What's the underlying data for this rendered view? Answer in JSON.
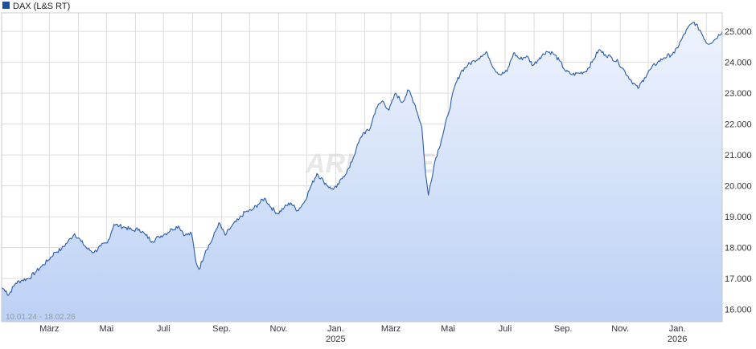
{
  "legend": {
    "label": "DAX (L&S RT)"
  },
  "date_range": "10.01.24 - 18.02.26",
  "watermark": "ARIVA.DE",
  "colors": {
    "line": "#2a5caa",
    "fill_top": "#eef3fd",
    "fill_bottom": "#bcd1f5",
    "grid": "#dcdcdc",
    "legend_box": "#1f4e9c",
    "frame": "#c8c8c8"
  },
  "chart_data": {
    "type": "area",
    "title": "",
    "xlabel": "",
    "ylabel": "",
    "ylim": [
      15600,
      25600
    ],
    "xlim": [
      "2024-01-10",
      "2026-02-18"
    ],
    "grid": true,
    "legend_placement": "top-left",
    "y_ticks": [
      "16.000",
      "17.000",
      "18.000",
      "19.000",
      "20.000",
      "21.000",
      "22.000",
      "23.000",
      "24.000",
      "25.000"
    ],
    "y_tick_values": [
      16000,
      17000,
      18000,
      19000,
      20000,
      21000,
      22000,
      23000,
      24000,
      25000
    ],
    "x_ticks": [
      {
        "date": "2024-03-01",
        "label": "März",
        "sublabel": ""
      },
      {
        "date": "2024-05-01",
        "label": "Mai",
        "sublabel": ""
      },
      {
        "date": "2024-07-01",
        "label": "Juli",
        "sublabel": ""
      },
      {
        "date": "2024-09-01",
        "label": "Sep.",
        "sublabel": ""
      },
      {
        "date": "2024-11-01",
        "label": "Nov.",
        "sublabel": ""
      },
      {
        "date": "2025-01-01",
        "label": "Jan.",
        "sublabel": "2025"
      },
      {
        "date": "2025-03-01",
        "label": "März",
        "sublabel": ""
      },
      {
        "date": "2025-05-01",
        "label": "Mai",
        "sublabel": ""
      },
      {
        "date": "2025-07-01",
        "label": "Juli",
        "sublabel": ""
      },
      {
        "date": "2025-09-01",
        "label": "Sep.",
        "sublabel": ""
      },
      {
        "date": "2025-11-01",
        "label": "Nov.",
        "sublabel": ""
      },
      {
        "date": "2026-01-01",
        "label": "Jan.",
        "sublabel": "2026"
      }
    ],
    "series": [
      {
        "name": "DAX (L&S RT)",
        "x": [
          "2024-01-10",
          "2024-01-15",
          "2024-01-17",
          "2024-01-25",
          "2024-02-01",
          "2024-02-08",
          "2024-02-15",
          "2024-02-22",
          "2024-02-29",
          "2024-03-07",
          "2024-03-14",
          "2024-03-21",
          "2024-03-28",
          "2024-04-04",
          "2024-04-11",
          "2024-04-18",
          "2024-04-25",
          "2024-05-02",
          "2024-05-09",
          "2024-05-15",
          "2024-05-22",
          "2024-05-29",
          "2024-06-05",
          "2024-06-12",
          "2024-06-19",
          "2024-06-26",
          "2024-07-03",
          "2024-07-10",
          "2024-07-17",
          "2024-07-24",
          "2024-07-31",
          "2024-08-05",
          "2024-08-08",
          "2024-08-15",
          "2024-08-22",
          "2024-08-29",
          "2024-09-05",
          "2024-09-12",
          "2024-09-19",
          "2024-09-26",
          "2024-10-03",
          "2024-10-10",
          "2024-10-17",
          "2024-10-24",
          "2024-10-31",
          "2024-11-07",
          "2024-11-14",
          "2024-11-21",
          "2024-11-28",
          "2024-12-05",
          "2024-12-12",
          "2024-12-19",
          "2024-12-27",
          "2025-01-02",
          "2025-01-09",
          "2025-01-16",
          "2025-01-23",
          "2025-01-30",
          "2025-02-06",
          "2025-02-13",
          "2025-02-20",
          "2025-02-27",
          "2025-03-06",
          "2025-03-13",
          "2025-03-20",
          "2025-03-27",
          "2025-04-03",
          "2025-04-07",
          "2025-04-10",
          "2025-04-17",
          "2025-04-24",
          "2025-05-01",
          "2025-05-08",
          "2025-05-15",
          "2025-05-22",
          "2025-05-29",
          "2025-06-05",
          "2025-06-12",
          "2025-06-19",
          "2025-06-26",
          "2025-07-03",
          "2025-07-10",
          "2025-07-17",
          "2025-07-24",
          "2025-07-31",
          "2025-08-07",
          "2025-08-14",
          "2025-08-21",
          "2025-08-28",
          "2025-09-04",
          "2025-09-11",
          "2025-09-18",
          "2025-09-25",
          "2025-10-02",
          "2025-10-09",
          "2025-10-16",
          "2025-10-23",
          "2025-10-30",
          "2025-11-06",
          "2025-11-13",
          "2025-11-20",
          "2025-11-27",
          "2025-12-04",
          "2025-12-11",
          "2025-12-18",
          "2025-12-29",
          "2026-01-05",
          "2026-01-12",
          "2026-01-19",
          "2026-01-26",
          "2026-02-02",
          "2026-02-09",
          "2026-02-18"
        ],
        "values": [
          16700,
          16600,
          16450,
          16850,
          16950,
          17000,
          17200,
          17400,
          17600,
          17850,
          17950,
          18200,
          18450,
          18200,
          17950,
          17850,
          18050,
          18150,
          18750,
          18700,
          18650,
          18550,
          18600,
          18400,
          18200,
          18350,
          18450,
          18600,
          18700,
          18400,
          18450,
          17500,
          17300,
          17900,
          18250,
          18800,
          18400,
          18700,
          18900,
          19150,
          19200,
          19400,
          19600,
          19300,
          19100,
          19300,
          19450,
          19200,
          19450,
          19950,
          20400,
          20150,
          19900,
          19950,
          20300,
          20600,
          21200,
          21700,
          21800,
          22500,
          22750,
          22450,
          23000,
          22700,
          23100,
          22600,
          21900,
          20400,
          19700,
          20800,
          21500,
          22300,
          23200,
          23700,
          23900,
          24050,
          24200,
          24300,
          23800,
          23600,
          23700,
          24300,
          24100,
          24200,
          23900,
          24150,
          24350,
          24300,
          24050,
          23700,
          23600,
          23650,
          23700,
          24000,
          24400,
          24250,
          24150,
          24000,
          23700,
          23400,
          23150,
          23500,
          23800,
          24000,
          24150,
          24300,
          24700,
          25100,
          25300,
          25000,
          24600,
          24700,
          25000
        ]
      }
    ]
  }
}
